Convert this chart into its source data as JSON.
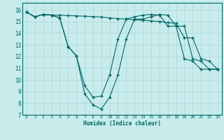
{
  "xlabel": "Humidex (Indice chaleur)",
  "bg_color": "#c8ecec",
  "grid_color": "#b0d8d8",
  "line_color": "#006666",
  "xlim": [
    -0.5,
    23.5
  ],
  "ylim": [
    7,
    16.6
  ],
  "yticks": [
    7,
    8,
    9,
    10,
    11,
    12,
    13,
    14,
    15,
    16
  ],
  "xticks": [
    0,
    1,
    2,
    3,
    4,
    5,
    6,
    7,
    8,
    9,
    10,
    11,
    12,
    13,
    14,
    15,
    16,
    17,
    18,
    19,
    20,
    21,
    22,
    23
  ],
  "line1_x": [
    0,
    1,
    2,
    3,
    4,
    5,
    6,
    7,
    8,
    9,
    10,
    11,
    12,
    13,
    14,
    15,
    16,
    17,
    18,
    19,
    20,
    21,
    22,
    23
  ],
  "line1_y": [
    15.8,
    15.4,
    15.6,
    15.55,
    15.55,
    15.5,
    15.48,
    15.45,
    15.42,
    15.38,
    15.3,
    15.25,
    15.2,
    15.15,
    15.1,
    15.05,
    15.0,
    14.9,
    14.85,
    13.6,
    13.6,
    11.8,
    11.6,
    10.9
  ],
  "line2_x": [
    0,
    1,
    2,
    3,
    4,
    5,
    6,
    7,
    8,
    9,
    10,
    11,
    12,
    13,
    14,
    15,
    16,
    17,
    18,
    19,
    20,
    21,
    22,
    23
  ],
  "line2_y": [
    15.8,
    15.4,
    15.6,
    15.55,
    15.3,
    12.85,
    12.05,
    9.5,
    8.5,
    8.6,
    10.4,
    13.5,
    15.2,
    15.4,
    15.55,
    15.6,
    15.55,
    14.6,
    14.6,
    11.8,
    11.6,
    10.9,
    10.9,
    10.9
  ],
  "line3_x": [
    0,
    1,
    2,
    3,
    4,
    5,
    6,
    7,
    8,
    9,
    10,
    11,
    12,
    13,
    14,
    15,
    16,
    17,
    18,
    19,
    20,
    21,
    22,
    23
  ],
  "line3_y": [
    15.8,
    15.4,
    15.6,
    15.55,
    15.3,
    12.85,
    12.05,
    8.8,
    7.85,
    7.5,
    8.5,
    10.4,
    13.5,
    15.2,
    15.2,
    15.4,
    15.6,
    15.55,
    14.6,
    14.6,
    11.8,
    11.6,
    10.9,
    10.9
  ]
}
